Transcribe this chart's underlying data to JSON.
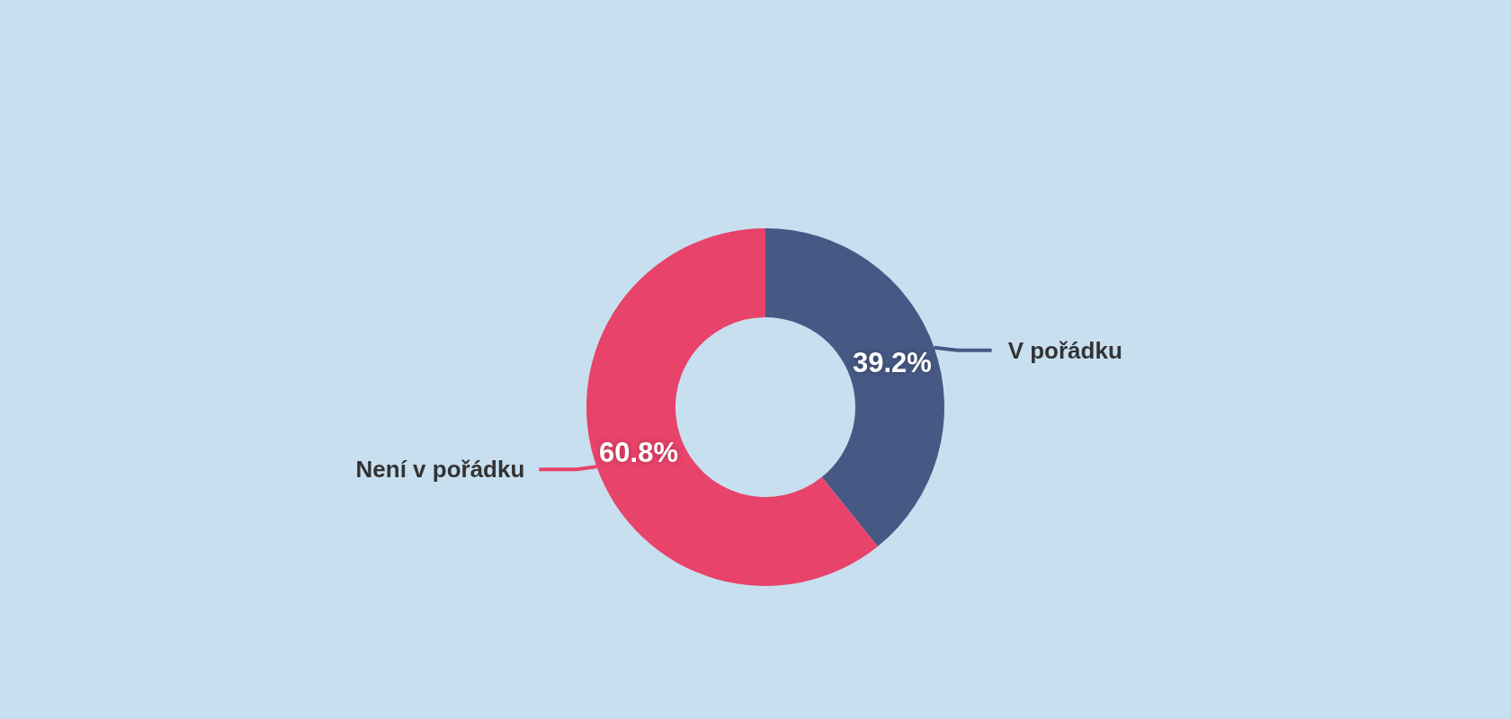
{
  "chart_data": {
    "type": "donut",
    "categories": [
      "V pořádku",
      "Není v pořádku"
    ],
    "values": [
      39.2,
      60.8
    ],
    "colors": [
      "#465884",
      "#e8436a"
    ],
    "value_labels": [
      "39.2%",
      "60.8%"
    ]
  }
}
